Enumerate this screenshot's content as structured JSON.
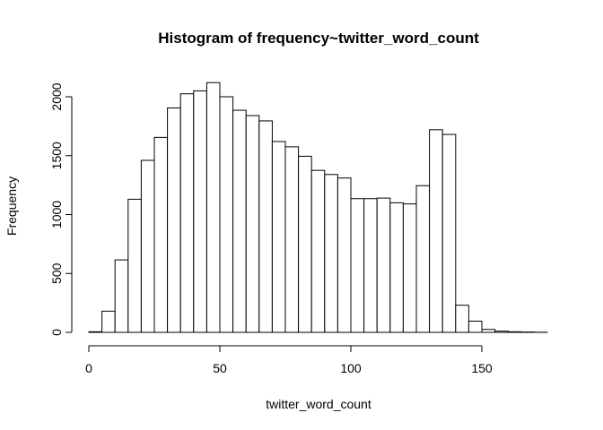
{
  "chart_data": {
    "type": "bar",
    "title": "Histogram of frequency~twitter_word_count",
    "xlabel": "twitter_word_count",
    "ylabel": "Frequency",
    "bin_width": 5,
    "bin_starts": [
      0,
      5,
      10,
      15,
      20,
      25,
      30,
      35,
      40,
      45,
      50,
      55,
      60,
      65,
      70,
      75,
      80,
      85,
      90,
      95,
      100,
      105,
      110,
      115,
      120,
      125,
      130,
      135,
      140,
      145,
      150,
      155,
      160,
      165,
      170
    ],
    "values": [
      5,
      180,
      615,
      1130,
      1460,
      1655,
      1905,
      2025,
      2050,
      2120,
      2000,
      1885,
      1840,
      1795,
      1620,
      1575,
      1495,
      1375,
      1340,
      1310,
      1135,
      1135,
      1140,
      1100,
      1090,
      1245,
      1720,
      1680,
      230,
      95,
      25,
      10,
      5,
      3,
      1
    ],
    "xlim": [
      0,
      175
    ],
    "ylim": [
      0,
      2130
    ],
    "x_ticks": [
      0,
      50,
      100,
      150
    ],
    "y_ticks": [
      0,
      500,
      1000,
      1500,
      2000
    ],
    "x_tick_labels": [
      "0",
      "50",
      "100",
      "150"
    ],
    "y_tick_labels": [
      "0",
      "500",
      "1000",
      "1500",
      "2000"
    ],
    "bar_fill": "#ffffff",
    "bar_stroke": "#000000",
    "grid": false
  }
}
